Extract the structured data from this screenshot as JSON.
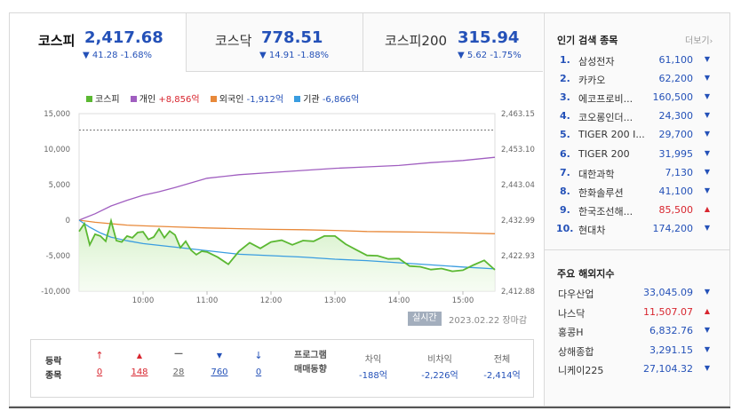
{
  "tabs": [
    {
      "name": "코스피",
      "value": "2,417.68",
      "change": "▼ 41.28 -1.68%",
      "active": true
    },
    {
      "name": "코스닥",
      "value": "778.51",
      "change": "▼ 14.91 -1.88%",
      "active": false
    },
    {
      "name": "코스피200",
      "value": "315.94",
      "change": "▼ 5.62 -1.75%",
      "active": false
    }
  ],
  "legend": [
    {
      "name": "코스피",
      "value": "",
      "color": "#5bb832"
    },
    {
      "name": "개인",
      "value": "+8,856억",
      "color": "#a05ec0",
      "value_color": "red"
    },
    {
      "name": "외국인",
      "value": "-1,912억",
      "color": "#e8893a",
      "value_color": "blue"
    },
    {
      "name": "기관",
      "value": "-6,866억",
      "color": "#3a9de0",
      "value_color": "blue"
    }
  ],
  "chart_data": {
    "type": "line",
    "left_axis_ticks": [
      "15,000",
      "10,000",
      "5,000",
      "0",
      "-5,000",
      "-10,000"
    ],
    "right_axis_ticks": [
      "2,463.15",
      "2,453.10",
      "2,443.04",
      "2,432.99",
      "2,422.93",
      "2,412.88"
    ],
    "x_ticks": [
      "10:00",
      "11:00",
      "12:00",
      "13:00",
      "14:00",
      "15:00"
    ],
    "reference_line": 2458.5,
    "kospi_ylim": [
      2412.88,
      2463.15
    ],
    "investor_ylim": [
      -10000,
      15000
    ],
    "series": [
      {
        "name": "코스피",
        "axis": "right",
        "color": "#5bb832",
        "x": [
          "09:00",
          "09:05",
          "09:10",
          "09:15",
          "09:20",
          "09:25",
          "09:30",
          "09:35",
          "09:40",
          "09:45",
          "09:50",
          "09:55",
          "10:00",
          "10:05",
          "10:10",
          "10:15",
          "10:20",
          "10:25",
          "10:30",
          "10:35",
          "10:40",
          "10:45",
          "10:50",
          "10:55",
          "11:00",
          "11:10",
          "11:20",
          "11:30",
          "11:40",
          "11:50",
          "12:00",
          "12:10",
          "12:20",
          "12:30",
          "12:40",
          "12:50",
          "13:00",
          "13:10",
          "13:20",
          "13:30",
          "13:40",
          "13:50",
          "14:00",
          "14:10",
          "14:20",
          "14:30",
          "14:40",
          "14:50",
          "15:00",
          "15:10",
          "15:20",
          "15:30"
        ],
        "y": [
          2429.8,
          2432.0,
          2426.0,
          2429.0,
          2428.5,
          2427.0,
          2432.8,
          2427.2,
          2426.8,
          2428.5,
          2428.0,
          2429.5,
          2429.7,
          2427.5,
          2428.2,
          2430.5,
          2428.0,
          2429.9,
          2428.8,
          2425.2,
          2427.0,
          2424.5,
          2423.2,
          2424.2,
          2424.0,
          2422.5,
          2420.5,
          2424.2,
          2426.6,
          2425.0,
          2426.8,
          2427.3,
          2426.0,
          2427.2,
          2427.0,
          2428.5,
          2428.5,
          2426.2,
          2424.6,
          2423.0,
          2422.9,
          2422.0,
          2422.1,
          2420.0,
          2419.8,
          2419.0,
          2419.3,
          2418.5,
          2418.8,
          2420.3,
          2421.6,
          2418.9
        ]
      },
      {
        "name": "개인",
        "axis": "left",
        "color": "#a05ec0",
        "x": [
          "09:00",
          "09:15",
          "09:30",
          "09:45",
          "10:00",
          "10:15",
          "10:30",
          "11:00",
          "11:30",
          "12:00",
          "12:30",
          "13:00",
          "13:30",
          "14:00",
          "14:30",
          "15:00",
          "15:30"
        ],
        "y": [
          0,
          900,
          2000,
          2800,
          3500,
          4000,
          4600,
          5900,
          6400,
          6700,
          7000,
          7300,
          7500,
          7700,
          8100,
          8400,
          8856
        ]
      },
      {
        "name": "외국인",
        "axis": "left",
        "color": "#e8893a",
        "x": [
          "09:00",
          "09:15",
          "09:30",
          "09:45",
          "10:00",
          "10:30",
          "11:00",
          "11:30",
          "12:00",
          "12:30",
          "13:00",
          "13:30",
          "14:00",
          "14:30",
          "15:00",
          "15:30"
        ],
        "y": [
          0,
          -300,
          -500,
          -700,
          -800,
          -950,
          -1100,
          -1200,
          -1300,
          -1350,
          -1450,
          -1600,
          -1650,
          -1700,
          -1800,
          -1912
        ]
      },
      {
        "name": "기관",
        "axis": "left",
        "color": "#3a9de0",
        "x": [
          "09:00",
          "09:10",
          "09:20",
          "09:30",
          "09:45",
          "10:00",
          "10:30",
          "11:00",
          "11:30",
          "12:00",
          "12:30",
          "13:00",
          "13:30",
          "14:00",
          "14:30",
          "15:00",
          "15:30"
        ],
        "y": [
          0,
          -1000,
          -1800,
          -2400,
          -2900,
          -3300,
          -3800,
          -4300,
          -4800,
          -5000,
          -5200,
          -5500,
          -5700,
          -6000,
          -6300,
          -6600,
          -6866
        ]
      }
    ]
  },
  "realtime_label": "실시간",
  "timestamp": "2023.02.22 장마감",
  "stats": {
    "label_line1": "등락",
    "label_line2": "종목",
    "items": [
      {
        "icon": "upper-limit-arrow-icon",
        "glyph": "🠕",
        "value": "0",
        "color": "red"
      },
      {
        "icon": "rise-triangle-icon",
        "glyph": "▲",
        "value": "148",
        "color": "red"
      },
      {
        "icon": "flat-dash-icon",
        "glyph": "━",
        "value": "28",
        "color": "gray"
      },
      {
        "icon": "fall-triangle-icon",
        "glyph": "▼",
        "value": "760",
        "color": "blue"
      },
      {
        "icon": "lower-limit-arrow-icon",
        "glyph": "🠗",
        "value": "0",
        "color": "blue"
      }
    ],
    "program_title_1": "프로그램",
    "program_title_2": "매매동향",
    "program": [
      {
        "header": "차익",
        "value": "-188억"
      },
      {
        "header": "비차익",
        "value": "-2,226억"
      },
      {
        "header": "전체",
        "value": "-2,414억"
      }
    ]
  },
  "popular": {
    "title": "인기 검색 종목",
    "more": "더보기",
    "items": [
      {
        "rank": "1.",
        "name": "삼성전자",
        "price": "61,100",
        "dir": "down"
      },
      {
        "rank": "2.",
        "name": "카카오",
        "price": "62,200",
        "dir": "down"
      },
      {
        "rank": "3.",
        "name": "에코프로비...",
        "price": "160,500",
        "dir": "down"
      },
      {
        "rank": "4.",
        "name": "코오롱인더...",
        "price": "24,300",
        "dir": "down"
      },
      {
        "rank": "5.",
        "name": "TIGER 200 I...",
        "price": "29,700",
        "dir": "down"
      },
      {
        "rank": "6.",
        "name": "TIGER 200",
        "price": "31,995",
        "dir": "down"
      },
      {
        "rank": "7.",
        "name": "대한과학",
        "price": "7,130",
        "dir": "down"
      },
      {
        "rank": "8.",
        "name": "한화솔루션",
        "price": "41,100",
        "dir": "down"
      },
      {
        "rank": "9.",
        "name": "한국조선해...",
        "price": "85,500",
        "dir": "up"
      },
      {
        "rank": "10.",
        "name": "현대차",
        "price": "174,200",
        "dir": "down"
      }
    ]
  },
  "overseas": {
    "title": "주요 해외지수",
    "items": [
      {
        "name": "다우산업",
        "value": "33,045.09",
        "dir": "down"
      },
      {
        "name": "나스닥",
        "value": "11,507.07",
        "dir": "up"
      },
      {
        "name": "홍콩H",
        "value": "6,832.76",
        "dir": "down"
      },
      {
        "name": "상해종합",
        "value": "3,291.15",
        "dir": "down"
      },
      {
        "name": "니케이225",
        "value": "27,104.32",
        "dir": "down"
      }
    ]
  }
}
